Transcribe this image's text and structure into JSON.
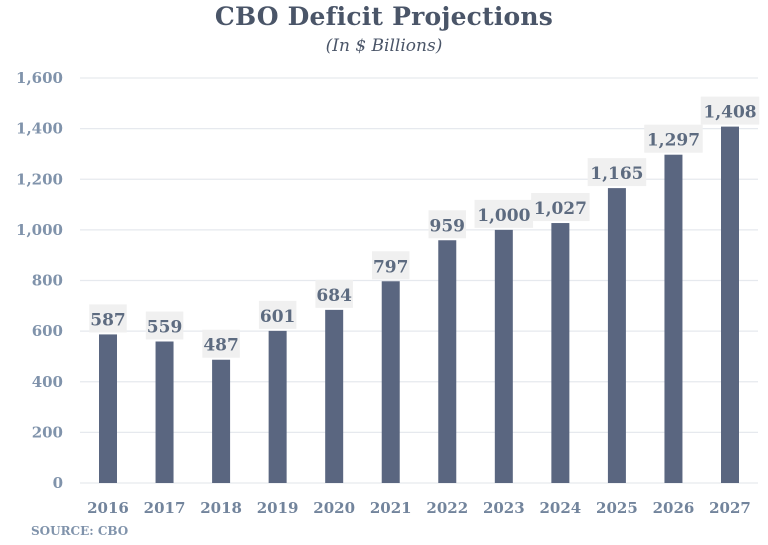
{
  "chart_data": {
    "type": "bar",
    "title": "CBO Deficit Projections",
    "subtitle": "(In $ Billions)",
    "xlabel": "",
    "ylabel": "",
    "categories": [
      "2016",
      "2017",
      "2018",
      "2019",
      "2020",
      "2021",
      "2022",
      "2023",
      "2024",
      "2025",
      "2026",
      "2027"
    ],
    "values": [
      587,
      559,
      487,
      601,
      684,
      797,
      959,
      1000,
      1027,
      1165,
      1297,
      1408
    ],
    "data_labels": [
      "587",
      "559",
      "487",
      "601",
      "684",
      "797",
      "959",
      "1,000",
      "1,027",
      "1,165",
      "1,297",
      "1,408"
    ],
    "ylim": [
      0,
      1600
    ],
    "yticks": [
      0,
      200,
      400,
      600,
      800,
      1000,
      1200,
      1400,
      1600
    ],
    "ytick_labels": [
      "0",
      "200",
      "400",
      "600",
      "800",
      "1,000",
      "1,200",
      "1,400",
      "1,600"
    ],
    "grid": true,
    "legend": "none",
    "source": "SOURCE: CBO",
    "colors": {
      "bar": "#5a6680",
      "grid": "#e6e9ee",
      "label_bg": "#f0f0f0"
    }
  }
}
